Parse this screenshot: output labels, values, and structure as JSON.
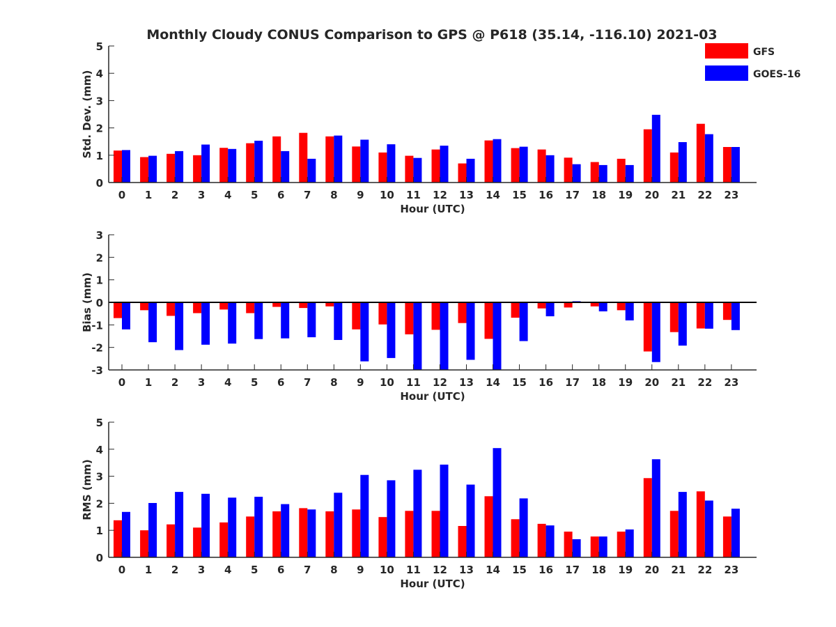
{
  "title": "Monthly Cloudy CONUS Comparison to GPS @ P618 (35.14, -116.10) 2021-03",
  "legend": [
    {
      "name": "GFS",
      "color": "#ff0000"
    },
    {
      "name": "GOES-16",
      "color": "#0000ff"
    }
  ],
  "chart_data": [
    {
      "type": "bar",
      "title": "Monthly Cloudy CONUS Comparison to GPS @ P618 (35.14, -116.10) 2021-03",
      "xlabel": "Hour (UTC)",
      "ylabel": "Std. Dev. (mm)",
      "ylim": [
        0,
        5
      ],
      "yticks": [
        "0",
        "1",
        "2",
        "3",
        "4",
        "5"
      ],
      "categories": [
        "0",
        "1",
        "2",
        "3",
        "4",
        "5",
        "6",
        "7",
        "8",
        "9",
        "10",
        "11",
        "12",
        "13",
        "14",
        "15",
        "16",
        "17",
        "18",
        "19",
        "20",
        "21",
        "22",
        "23"
      ],
      "series": [
        {
          "name": "GFS",
          "color": "#ff0000",
          "values": [
            1.17,
            0.93,
            1.05,
            1.0,
            1.27,
            1.44,
            1.69,
            1.82,
            1.69,
            1.32,
            1.1,
            0.98,
            1.21,
            0.7,
            1.54,
            1.26,
            1.21,
            0.91,
            0.75,
            0.87,
            1.95,
            1.1,
            2.15,
            1.3
          ]
        },
        {
          "name": "GOES-16",
          "color": "#0000ff",
          "values": [
            1.19,
            0.98,
            1.15,
            1.39,
            1.23,
            1.53,
            1.15,
            0.87,
            1.72,
            1.57,
            1.4,
            0.9,
            1.35,
            0.87,
            1.59,
            1.31,
            1.0,
            0.67,
            0.64,
            0.64,
            2.48,
            1.48,
            1.77,
            1.3
          ]
        }
      ]
    },
    {
      "type": "bar",
      "xlabel": "Hour (UTC)",
      "ylabel": "Bias (mm)",
      "ylim": [
        -3,
        3
      ],
      "yticks": [
        "-3",
        "-2",
        "-1",
        "0",
        "1",
        "2",
        "3"
      ],
      "categories": [
        "0",
        "1",
        "2",
        "3",
        "4",
        "5",
        "6",
        "7",
        "8",
        "9",
        "10",
        "11",
        "12",
        "13",
        "14",
        "15",
        "16",
        "17",
        "18",
        "19",
        "20",
        "21",
        "22",
        "23"
      ],
      "series": [
        {
          "name": "GFS",
          "color": "#ff0000",
          "values": [
            -0.7,
            -0.35,
            -0.6,
            -0.48,
            -0.32,
            -0.48,
            -0.2,
            -0.25,
            -0.18,
            -1.2,
            -0.98,
            -1.42,
            -1.22,
            -0.92,
            -1.62,
            -0.68,
            -0.27,
            -0.23,
            -0.18,
            -0.35,
            -2.18,
            -1.32,
            -1.16,
            -0.78
          ]
        },
        {
          "name": "GOES-16",
          "color": "#0000ff",
          "values": [
            -1.2,
            -1.77,
            -2.12,
            -1.88,
            -1.83,
            -1.63,
            -1.6,
            -1.55,
            -1.67,
            -2.62,
            -2.47,
            -3.0,
            -3.0,
            -2.55,
            -3.0,
            -1.72,
            -0.62,
            0.05,
            -0.4,
            -0.8,
            -2.65,
            -1.92,
            -1.17,
            -1.23
          ]
        }
      ]
    },
    {
      "type": "bar",
      "xlabel": "Hour (UTC)",
      "ylabel": "RMS (mm)",
      "ylim": [
        0,
        5
      ],
      "yticks": [
        "0",
        "1",
        "2",
        "3",
        "4",
        "5"
      ],
      "categories": [
        "0",
        "1",
        "2",
        "3",
        "4",
        "5",
        "6",
        "7",
        "8",
        "9",
        "10",
        "11",
        "12",
        "13",
        "14",
        "15",
        "16",
        "17",
        "18",
        "19",
        "20",
        "21",
        "22",
        "23"
      ],
      "series": [
        {
          "name": "GFS",
          "color": "#ff0000",
          "values": [
            1.37,
            1.0,
            1.22,
            1.1,
            1.29,
            1.51,
            1.7,
            1.82,
            1.7,
            1.77,
            1.49,
            1.72,
            1.72,
            1.16,
            2.26,
            1.41,
            1.24,
            0.95,
            0.77,
            0.95,
            2.93,
            1.72,
            2.44,
            1.51
          ]
        },
        {
          "name": "GOES-16",
          "color": "#0000ff",
          "values": [
            1.68,
            2.01,
            2.42,
            2.35,
            2.21,
            2.24,
            1.97,
            1.77,
            2.39,
            3.05,
            2.85,
            3.24,
            3.43,
            2.69,
            4.04,
            2.18,
            1.18,
            0.67,
            0.77,
            1.03,
            3.63,
            2.42,
            2.1,
            1.8
          ]
        }
      ]
    }
  ]
}
